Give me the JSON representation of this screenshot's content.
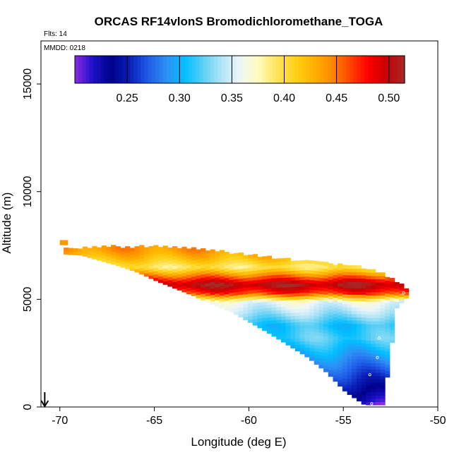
{
  "chart_data": {
    "type": "heatmap",
    "title": "ORCAS RF14vlonS Bromodichloromethane_TOGA",
    "flights_label": "Flts: 14",
    "date_label": "MMDD: 0218",
    "xlabel": "Longitude (deg E)",
    "ylabel": "Altitude (m)",
    "xlim": [
      -71,
      -50
    ],
    "ylim": [
      0,
      17000
    ],
    "x_ticks": [
      -70,
      -65,
      -60,
      -55,
      -50
    ],
    "x_tick_labels": [
      "-70",
      "-65",
      "-60",
      "-55",
      "-50"
    ],
    "y_ticks": [
      0,
      5000,
      10000,
      15000
    ],
    "y_tick_labels": [
      "0",
      "5000",
      "10000",
      "15000"
    ],
    "colorbar": {
      "range": [
        0.2,
        0.515
      ],
      "ticks": [
        0.25,
        0.3,
        0.35,
        0.4,
        0.45,
        0.5
      ],
      "tick_labels": [
        "0.25",
        "0.30",
        "0.35",
        "0.40",
        "0.45",
        "0.50"
      ],
      "colors": [
        "#8a2be2",
        "#1a10c8",
        "#00008b",
        "#0a1fb8",
        "#1f5ce8",
        "#2e8ff5",
        "#00bfff",
        "#5ccff5",
        "#b0e4f7",
        "#eef6f8",
        "#fffcc0",
        "#ffe45c",
        "#ffd21a",
        "#ffb300",
        "#ff8c00",
        "#ff4500",
        "#ff0000",
        "#c80000",
        "#a52a2a"
      ]
    },
    "profiles": [
      {
        "x": -69.8,
        "top": 7300,
        "bottom": 7100
      },
      {
        "x": -69.0,
        "top": 7350,
        "bottom": 7050
      },
      {
        "x": -68.0,
        "top": 7380,
        "bottom": 6800
      },
      {
        "x": -67.0,
        "top": 7380,
        "bottom": 6550
      },
      {
        "x": -66.0,
        "top": 7380,
        "bottom": 6250
      },
      {
        "x": -65.0,
        "top": 7380,
        "bottom": 5850
      },
      {
        "x": -64.0,
        "top": 7380,
        "bottom": 5500
      },
      {
        "x": -63.0,
        "top": 7300,
        "bottom": 5150
      },
      {
        "x": -62.0,
        "top": 7200,
        "bottom": 4750
      },
      {
        "x": -61.0,
        "top": 7100,
        "bottom": 4400
      },
      {
        "x": -60.0,
        "top": 7000,
        "bottom": 3900
      },
      {
        "x": -59.0,
        "top": 6900,
        "bottom": 3400
      },
      {
        "x": -58.0,
        "top": 6800,
        "bottom": 2850
      },
      {
        "x": -57.0,
        "top": 6700,
        "bottom": 2300
      },
      {
        "x": -56.0,
        "top": 6600,
        "bottom": 1600
      },
      {
        "x": -55.0,
        "top": 6500,
        "bottom": 700
      },
      {
        "x": -54.0,
        "top": 6400,
        "bottom": 100
      },
      {
        "x": -53.0,
        "top": 6150,
        "bottom": 100
      },
      {
        "x": -52.3,
        "top": 5700,
        "bottom": 4600
      },
      {
        "x": -51.7,
        "top": 5450,
        "bottom": 5150
      }
    ],
    "isolated_points": [
      {
        "x": -70.0,
        "y": 7600,
        "value": 0.44
      }
    ],
    "layers": [
      {
        "altitude": 7300,
        "value": 0.44
      },
      {
        "altitude": 6900,
        "value": 0.42
      },
      {
        "altitude": 6500,
        "value": 0.39
      },
      {
        "altitude": 6100,
        "value": 0.45
      },
      {
        "altitude": 5700,
        "value": 0.51
      },
      {
        "altitude": 5300,
        "value": 0.47
      },
      {
        "altitude": 4900,
        "value": 0.36
      },
      {
        "altitude": 4400,
        "value": 0.34
      },
      {
        "altitude": 3800,
        "value": 0.31
      },
      {
        "altitude": 3200,
        "value": 0.32
      },
      {
        "altitude": 2600,
        "value": 0.3
      },
      {
        "altitude": 2000,
        "value": 0.28
      },
      {
        "altitude": 1400,
        "value": 0.26
      },
      {
        "altitude": 800,
        "value": 0.24
      },
      {
        "altitude": 300,
        "value": 0.22
      },
      {
        "altitude": 100,
        "value": 0.205
      }
    ],
    "sample_points": [
      {
        "x": -54.8,
        "y": 200
      },
      {
        "x": -53.5,
        "y": 150
      },
      {
        "x": -53.6,
        "y": 1500
      },
      {
        "x": -53.2,
        "y": 2300
      },
      {
        "x": -53.1,
        "y": 3200
      },
      {
        "x": -52.8,
        "y": 4900
      },
      {
        "x": -51.8,
        "y": 5300
      }
    ],
    "arrow_x": -70.8
  }
}
